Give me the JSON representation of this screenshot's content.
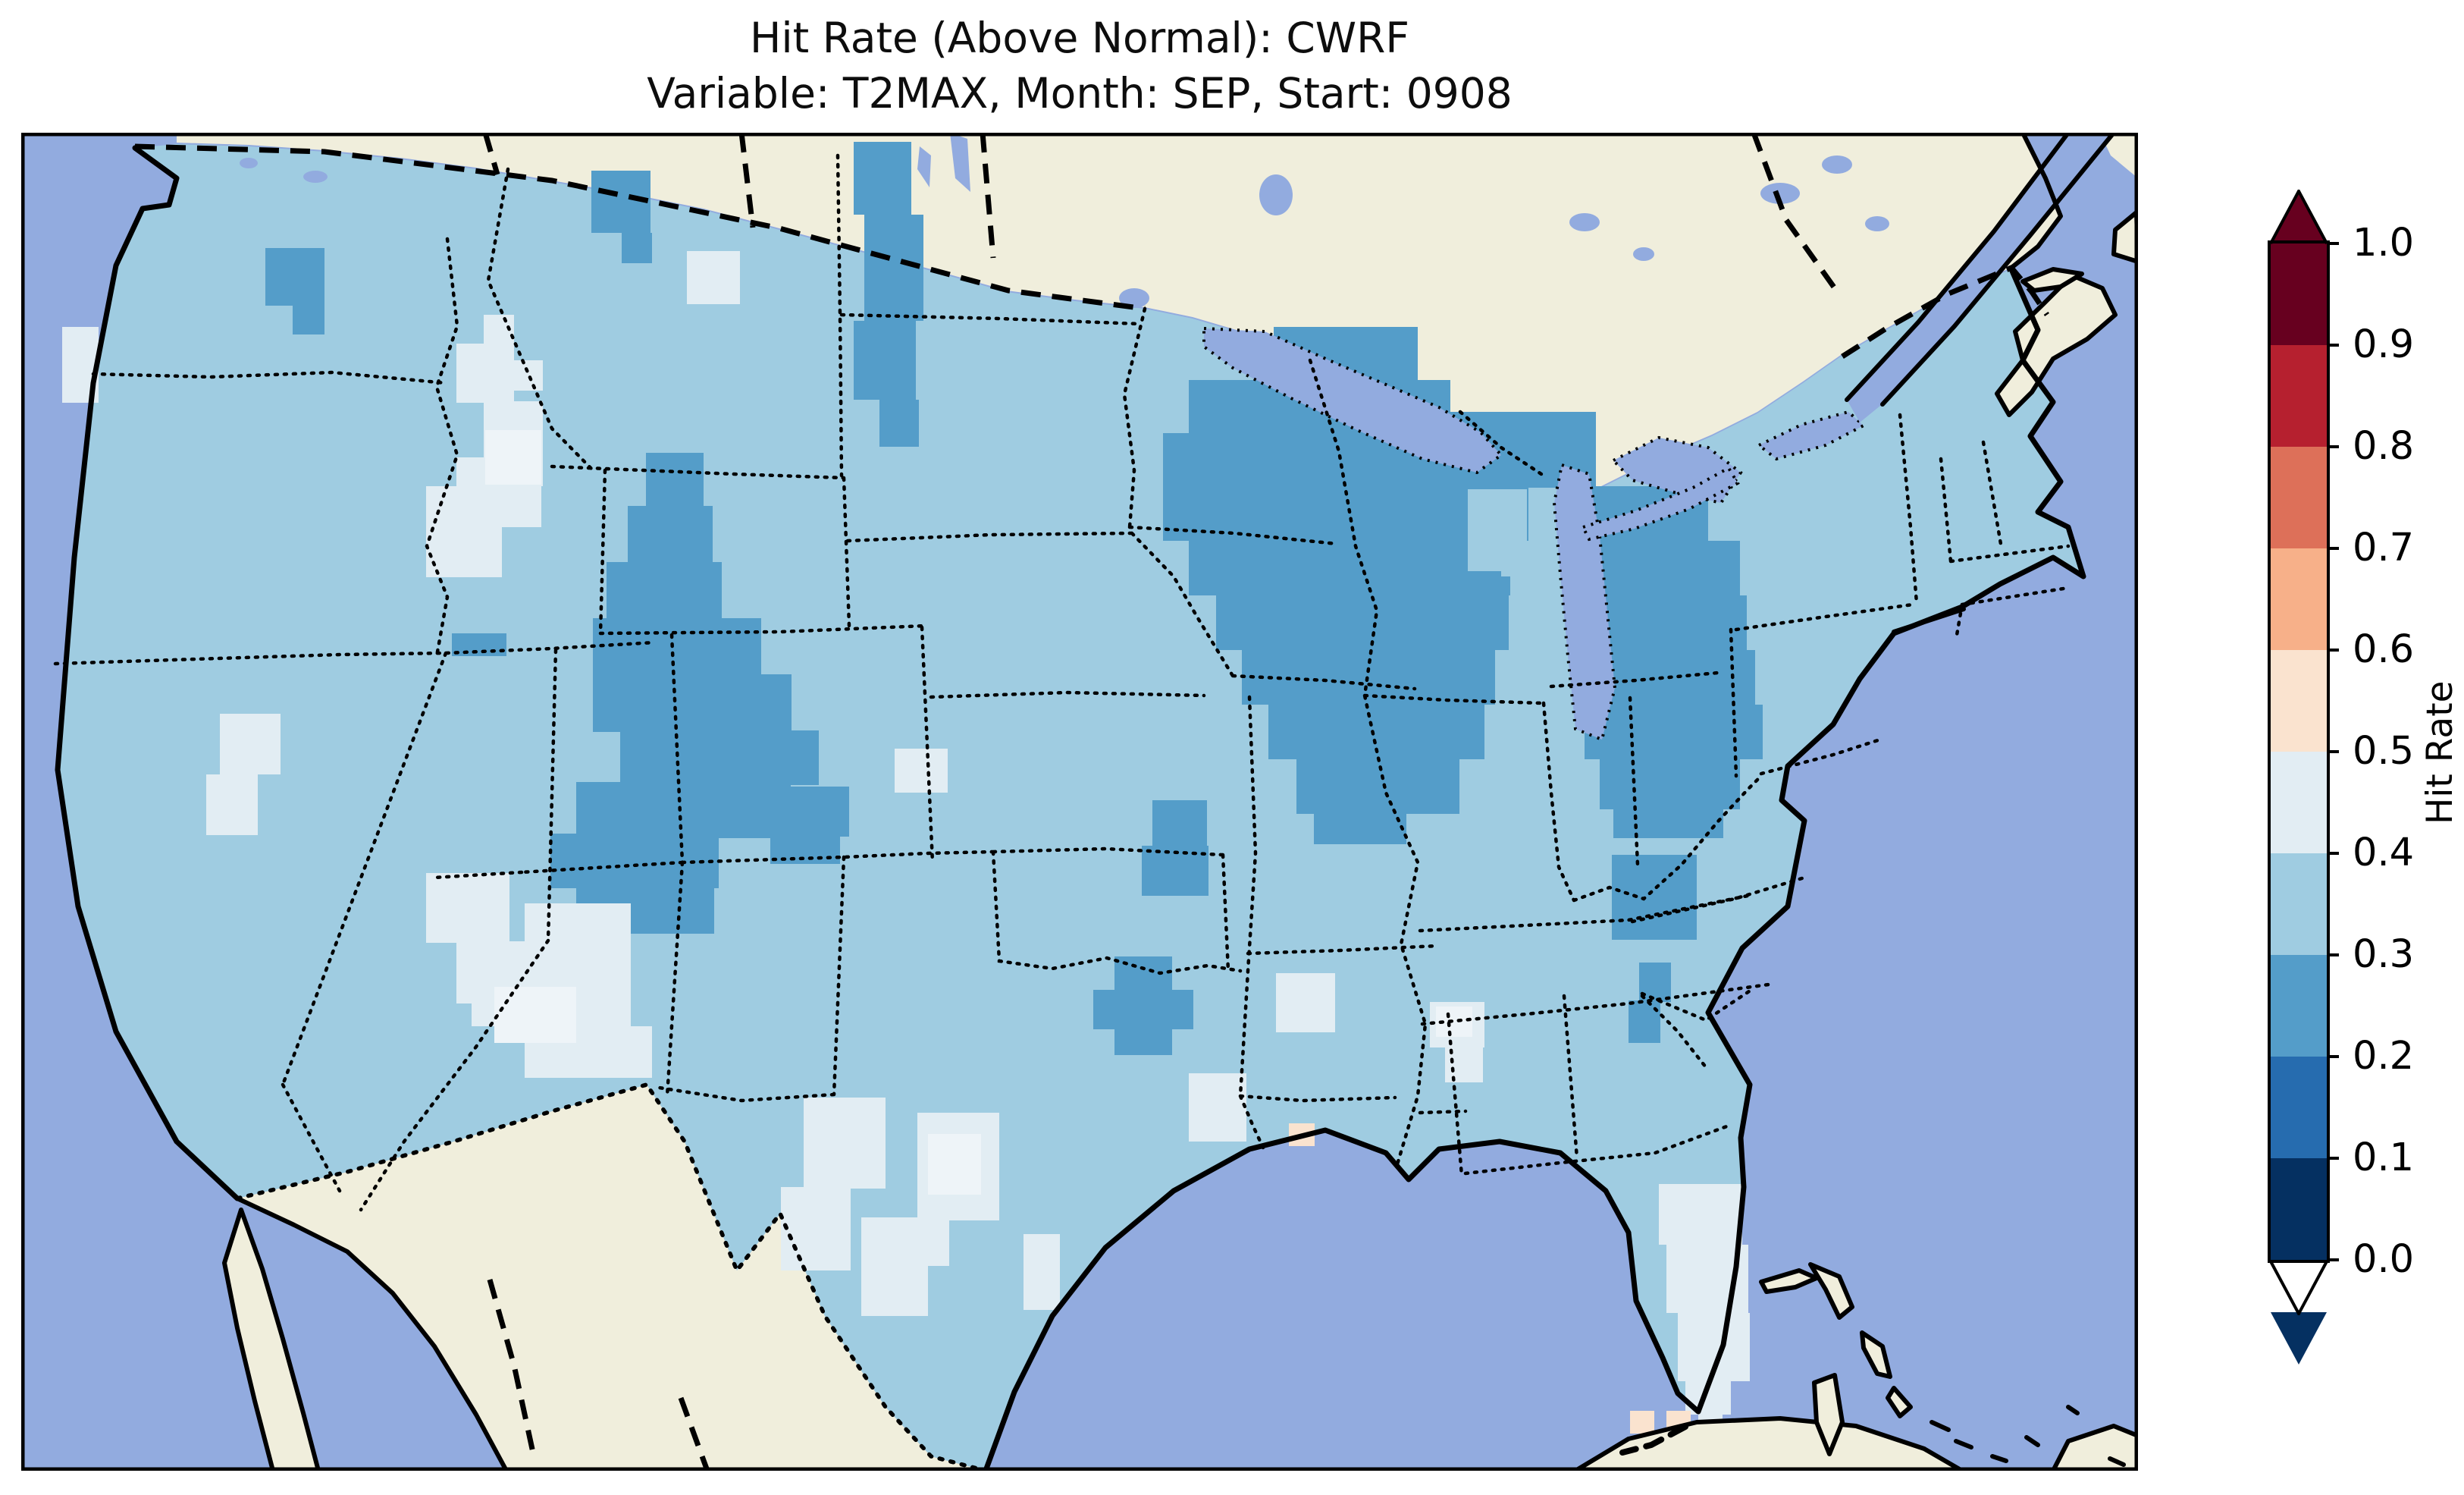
{
  "figure": {
    "title_line1": "Hit Rate (Above Normal): CWRF",
    "title_line2": "Variable: T2MAX, Month: SEP, Start: 0908"
  },
  "colorbar": {
    "label": "Hit Rate",
    "tick_labels": [
      "1.0",
      "0.9",
      "0.8",
      "0.7",
      "0.6",
      "0.5",
      "0.4",
      "0.3",
      "0.2",
      "0.1",
      "0.0"
    ],
    "bins_top_to_bottom": [
      {
        "range": "0.9–1.0",
        "color": "#67001f"
      },
      {
        "range": "0.8–0.9",
        "color": "#b6202f"
      },
      {
        "range": "0.7–0.8",
        "color": "#dd7059"
      },
      {
        "range": "0.6–0.7",
        "color": "#f7b089"
      },
      {
        "range": "0.5–0.6",
        "color": "#fae3cf"
      },
      {
        "range": "0.4–0.5",
        "color": "#e2edf3"
      },
      {
        "range": "0.3–0.4",
        "color": "#9fcce1"
      },
      {
        "range": "0.2–0.3",
        "color": "#549dc9"
      },
      {
        "range": "0.1–0.2",
        "color": "#266caf"
      },
      {
        "range": "0.0–0.1",
        "color": "#053061"
      }
    ],
    "over_arrow_color": "#67001f",
    "under_arrow_color": "#053061"
  },
  "colors": {
    "ocean": "#92abdf",
    "land": "#f0eedc",
    "base": "#9fcce1",
    "dark": "#549dc9",
    "pale": "#e2edf3",
    "white": "#eef4f8",
    "pink": "#fae3cf",
    "over": "#67001f",
    "under": "#053061"
  },
  "chart_data": {
    "type": "heatmap",
    "title": "Hit Rate (Above Normal): CWRF",
    "subtitle": "Variable: T2MAX, Month: SEP, Start: 0908",
    "metric": "Hit Rate (Above Normal)",
    "model": "CWRF",
    "variable": "T2MAX",
    "month": "SEP",
    "start": "0908",
    "colorbar_label": "Hit Rate",
    "colorbar_ticks": [
      0.0,
      0.1,
      0.2,
      0.3,
      0.4,
      0.5,
      0.6,
      0.7,
      0.8,
      0.9,
      1.0
    ],
    "value_range": [
      0.0,
      1.0
    ],
    "colormap": "RdBu_r, 10 discrete bins, extended arrows both ends",
    "map_region": "Contiguous United States (gridded cells over CONUS only)",
    "predominant_value": "0.3–0.4 over most of the CONUS",
    "regions": [
      {
        "name": "Most of CONUS (background)",
        "hit_rate": "0.3–0.4"
      },
      {
        "name": "Minnesota / Wisconsin / Michigan (Upper Midwest blob)",
        "hit_rate": "0.2–0.3"
      },
      {
        "name": "Eastern Dakotas north–south strip",
        "hit_rate": "0.2–0.3"
      },
      {
        "name": "Central Washington",
        "hit_rate": "0.2–0.3"
      },
      {
        "name": "North-central Montana at Canadian border",
        "hit_rate": "0.2–0.3"
      },
      {
        "name": "Colorado Rockies extending into S Wyoming",
        "hit_rate": "0.2–0.3"
      },
      {
        "name": "Northwest New Mexico",
        "hit_rate": "0.2–0.3"
      },
      {
        "name": "NE Texas / SE Oklahoma (Red River)",
        "hit_rate": "0.2–0.3"
      },
      {
        "name": "Southeast Missouri",
        "hit_rate": "0.2–0.3"
      },
      {
        "name": "Georgia coast (few cells)",
        "hit_rate": "0.2–0.3"
      },
      {
        "name": "Central Idaho / SW Montana",
        "hit_rate": "0.4–0.5"
      },
      {
        "name": "Northern Utah (small)",
        "hit_rate": "0.4–0.5"
      },
      {
        "name": "Southern Nevada / Utah–Arizona border",
        "hit_rate": "0.4–0.5"
      },
      {
        "name": "Southern New Mexico / far West Texas",
        "hit_rate": "0.4–0.5"
      },
      {
        "name": "South-central Texas (V-shaped area)",
        "hit_rate": "0.4–0.5"
      },
      {
        "name": "Southern Alabama (small)",
        "hit_rate": "0.4–0.5"
      },
      {
        "name": "Central and South Florida",
        "hit_rate": "0.4–0.5"
      },
      {
        "name": "Coastal California/Oregon (scattered cells)",
        "hit_rate": "0.4–0.5"
      },
      {
        "name": "Coastal Louisiana (isolated cell)",
        "hit_rate": "0.5–0.6"
      },
      {
        "name": "Cells just SW of Florida peninsula",
        "hit_rate": "0.5–0.6"
      }
    ],
    "layout": {
      "legend_position": "right vertical colorbar",
      "grid": false
    }
  }
}
